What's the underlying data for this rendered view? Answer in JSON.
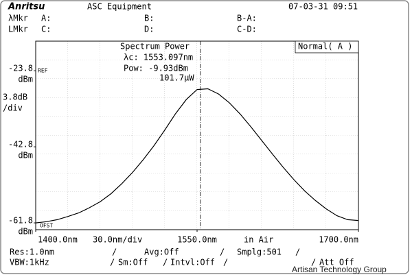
{
  "header": {
    "logo": "Anritsu",
    "title": "ASC Equipment",
    "datetime": "07-03-31 09:51"
  },
  "markers": {
    "wavelength_label": "λMkr",
    "a": "A:",
    "b": "B:",
    "b_minus_a": "B-A:",
    "level_label": "LMkr",
    "c": "C:",
    "d": "D:",
    "c_minus_d": "C-D:"
  },
  "chart_data": {
    "type": "line",
    "title": "Spectrum Power",
    "annotations": [
      "λc: 1553.097nm",
      "Pow: -9.93dBm",
      "101.7μW"
    ],
    "mode": "Normal( A )",
    "y_unit": "dBm",
    "y_scale": [
      "3.8dB",
      "/div"
    ],
    "ref_label": "REF",
    "offset_label": "OFST",
    "x_scale": "30.0nm/div",
    "medium": "in Air",
    "x": [
      1400,
      1410,
      1420,
      1430,
      1440,
      1450,
      1460,
      1470,
      1480,
      1490,
      1500,
      1510,
      1520,
      1530,
      1540,
      1550,
      1560,
      1570,
      1580,
      1590,
      1600,
      1610,
      1620,
      1630,
      1640,
      1650,
      1660,
      1670,
      1680,
      1690,
      1700
    ],
    "values": [
      -61.8,
      -61.5,
      -61.0,
      -60.2,
      -59.3,
      -58.0,
      -56.5,
      -54.5,
      -52.0,
      -49.2,
      -46.0,
      -42.5,
      -38.6,
      -34.5,
      -31.0,
      -28.5,
      -28.3,
      -29.6,
      -31.8,
      -34.6,
      -37.8,
      -41.2,
      -44.6,
      -47.9,
      -51.0,
      -53.8,
      -56.2,
      -58.3,
      -60.0,
      -61.0,
      -61.2
    ],
    "color": "#000000",
    "xlim": [
      1400,
      1700
    ],
    "xticks": [
      {
        "value": 1400,
        "label": "1400.0nm"
      },
      {
        "value": 1550,
        "label": "1550.0nm"
      },
      {
        "value": 1700,
        "label": "1700.0nm"
      }
    ],
    "ylim": [
      -63.5,
      -16.4
    ],
    "yticks": [
      -23.8,
      -42.8,
      -61.8
    ],
    "marker_x": 1553.097,
    "grid": true
  },
  "settings": {
    "row1": [
      "Res:1.0nm",
      "/",
      "Avg:Off",
      "/",
      "Smplg:501",
      "/"
    ],
    "row2": [
      "VBW:1kHz",
      "/",
      "Sm:Off",
      "/",
      "Intvl:Off",
      "/",
      "/",
      "Att Off"
    ]
  },
  "watermark": "Artisan Technology Group"
}
